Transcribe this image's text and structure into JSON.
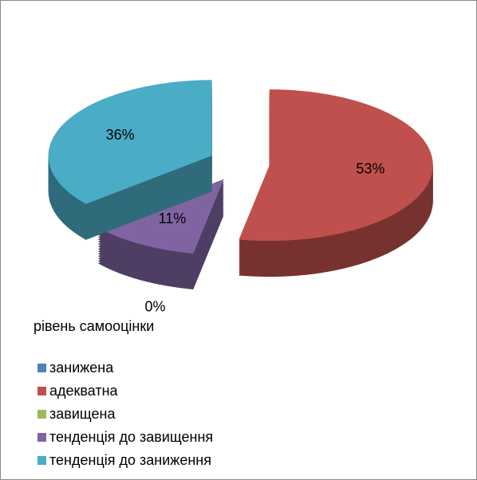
{
  "chart_data": {
    "type": "pie",
    "legend_title": "рівень самооцінки",
    "categories": [
      "занижена",
      "адекватна",
      "завищена",
      "тенденція до завищення",
      "тенденція до заниження"
    ],
    "values": [
      0,
      53,
      0,
      11,
      36
    ],
    "value_labels": [
      null,
      "53%",
      "0%",
      "11%",
      "36%"
    ],
    "colors": [
      "#4f81bd",
      "#c0504d",
      "#9bbb59",
      "#8064a2",
      "#4bacc6"
    ],
    "legend": "bottom-left"
  }
}
